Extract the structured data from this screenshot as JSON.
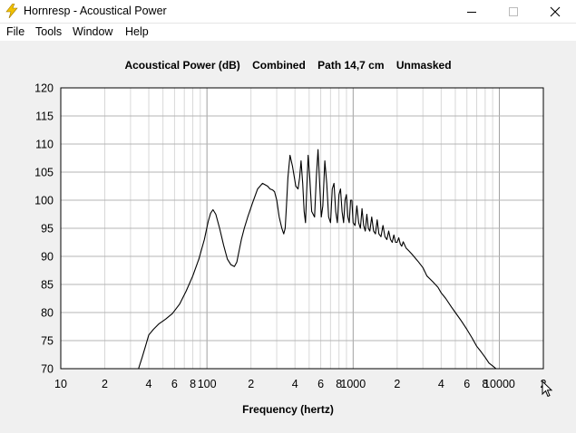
{
  "window": {
    "title": "Hornresp - Acoustical Power",
    "icon": "lightning-bolt-icon",
    "controls": [
      "minimize-icon",
      "maximize-icon",
      "close-icon"
    ]
  },
  "menu": {
    "items": [
      "File",
      "Tools",
      "Window",
      "Help"
    ]
  },
  "chart_data": {
    "type": "line",
    "title": "Acoustical Power (dB)    Combined    Path 14,7 cm    Unmasked",
    "xlabel": "Frequency (hertz)",
    "ylabel": "",
    "xscale": "log",
    "xlim": [
      10,
      20000
    ],
    "ylim": [
      70,
      120
    ],
    "yticks": [
      "70",
      "75",
      "80",
      "85",
      "90",
      "95",
      "100",
      "105",
      "110",
      "115",
      "120"
    ],
    "xticks": [
      {
        "value": 10,
        "label": "10"
      },
      {
        "value": 20,
        "label": "2"
      },
      {
        "value": 40,
        "label": "4"
      },
      {
        "value": 60,
        "label": "6"
      },
      {
        "value": 80,
        "label": "8"
      },
      {
        "value": 100,
        "label": "100"
      },
      {
        "value": 200,
        "label": "2"
      },
      {
        "value": 400,
        "label": "4"
      },
      {
        "value": 600,
        "label": "6"
      },
      {
        "value": 800,
        "label": "8"
      },
      {
        "value": 1000,
        "label": "1000"
      },
      {
        "value": 2000,
        "label": "2"
      },
      {
        "value": 4000,
        "label": "4"
      },
      {
        "value": 6000,
        "label": "6"
      },
      {
        "value": 8000,
        "label": "8"
      },
      {
        "value": 10000,
        "label": "10000"
      },
      {
        "value": 20000,
        "label": "2"
      }
    ],
    "grid": true,
    "line_color": "#000000",
    "series": [
      {
        "x": [
          34,
          36,
          38,
          40,
          43,
          47,
          52,
          58,
          65,
          72,
          80,
          88,
          96,
          102,
          106,
          110,
          115,
          122,
          130,
          138,
          146,
          154,
          160,
          166,
          172,
          180,
          190,
          205,
          222,
          240,
          260,
          270,
          282,
          290,
          300,
          312,
          325,
          335,
          343,
          350,
          358,
          370,
          385,
          405,
          420,
          430,
          440,
          452,
          462,
          472,
          482,
          492,
          505,
          520,
          545,
          560,
          575,
          590,
          605,
          620,
          640,
          660,
          680,
          700,
          720,
          740,
          760,
          780,
          800,
          820,
          840,
          860,
          880,
          900,
          920,
          940,
          960,
          980,
          1000,
          1030,
          1060,
          1090,
          1120,
          1150,
          1180,
          1210,
          1240,
          1270,
          1300,
          1340,
          1380,
          1420,
          1460,
          1500,
          1550,
          1600,
          1650,
          1700,
          1750,
          1800,
          1850,
          1900,
          1950,
          2000,
          2050,
          2100,
          2150,
          2200,
          2300,
          2400,
          2500,
          2600,
          2700,
          2800,
          2900,
          3000,
          3200,
          3500,
          3800,
          4000,
          4300,
          4700,
          5000,
          5500,
          6000,
          6500,
          7000,
          7500,
          8000,
          8500,
          9000,
          9500,
          9900
        ],
        "y": [
          70,
          72,
          74,
          76,
          77,
          78,
          78.8,
          79.8,
          81.5,
          83.8,
          86.5,
          89.5,
          93,
          96.2,
          97.7,
          98.3,
          97.5,
          95,
          92,
          89.5,
          88.5,
          88.2,
          89,
          91,
          93,
          95,
          97,
          99.5,
          102,
          103,
          102.5,
          102,
          101.8,
          101.5,
          100,
          97,
          95,
          94,
          95,
          99,
          104,
          108,
          106,
          102.5,
          102,
          104,
          107,
          103,
          98,
          96,
          102,
          108,
          104,
          98,
          97,
          104,
          109,
          103,
          97,
          99,
          107,
          103,
          97,
          96,
          102,
          103,
          98,
          96,
          101,
          102,
          98,
          96,
          100,
          101,
          97,
          96,
          100,
          100,
          96,
          95.5,
          99,
          96,
          95,
          98.5,
          95.5,
          94.5,
          97.5,
          95,
          94.5,
          97,
          94.5,
          94,
          96.5,
          94,
          93.5,
          95.5,
          93.5,
          93,
          94.5,
          93,
          92.5,
          93.8,
          92.5,
          92.5,
          93.3,
          92.2,
          91.8,
          92.6,
          91.5,
          91,
          90.5,
          90,
          89.5,
          89,
          88.5,
          88,
          86.5,
          85.5,
          84.5,
          83.5,
          82.5,
          81,
          80,
          78.5,
          77,
          75.5,
          74,
          73,
          72,
          71,
          70.5,
          70,
          69.5
        ]
      }
    ]
  }
}
